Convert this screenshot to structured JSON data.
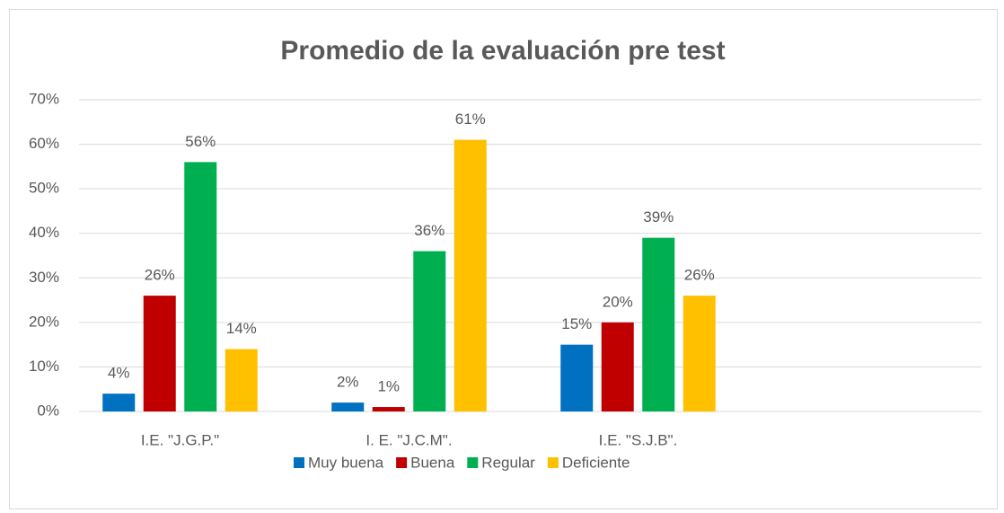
{
  "chart_data": {
    "type": "bar",
    "title": "Promedio de la evaluación pre test",
    "categories": [
      "I.E. \"J.G.P.\"",
      "I. E. \"J.C.M\".",
      "I.E. \"S.J.B\".",
      null
    ],
    "series": [
      {
        "name": "Muy buena",
        "color": "#0070c0",
        "values": [
          4,
          2,
          15,
          null
        ],
        "value_labels": [
          "4%",
          "2%",
          "15%",
          null
        ]
      },
      {
        "name": "Buena",
        "color": "#c00000",
        "values": [
          26,
          1,
          20,
          null
        ],
        "value_labels": [
          "26%",
          "1%",
          "20%",
          null
        ]
      },
      {
        "name": "Regular",
        "color": "#00b050",
        "values": [
          56,
          36,
          39,
          null
        ],
        "value_labels": [
          "56%",
          "36%",
          "39%",
          null
        ]
      },
      {
        "name": "Deficiente",
        "color": "#ffc000",
        "values": [
          14,
          61,
          26,
          null
        ],
        "value_labels": [
          "14%",
          "61%",
          "26%",
          null
        ]
      }
    ],
    "ylim": [
      0,
      70
    ],
    "yticks": [
      {
        "value": 0,
        "label": "0%"
      },
      {
        "value": 10,
        "label": "10%"
      },
      {
        "value": 20,
        "label": "20%"
      },
      {
        "value": 30,
        "label": "30%"
      },
      {
        "value": 40,
        "label": "40%"
      },
      {
        "value": 50,
        "label": "50%"
      },
      {
        "value": 60,
        "label": "60%"
      },
      {
        "value": 70,
        "label": "70%"
      }
    ],
    "grid": true,
    "legend": "bottom"
  }
}
